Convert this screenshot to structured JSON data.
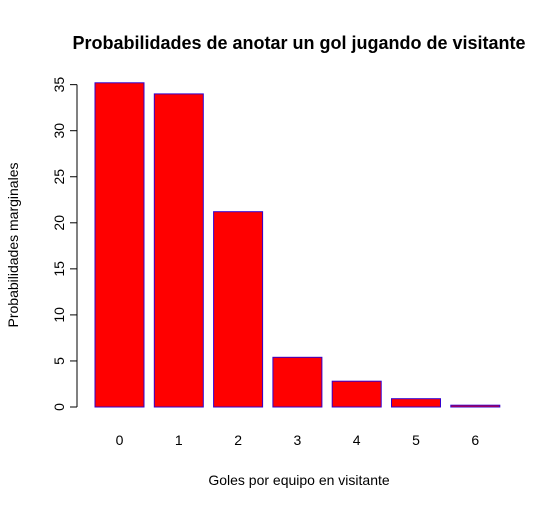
{
  "chart_data": {
    "type": "bar",
    "title": "Probabilidades de anotar un gol jugando de visitante",
    "xlabel": "Goles por equipo en visitante",
    "ylabel": "Probabilidades marginales",
    "categories": [
      "0",
      "1",
      "2",
      "3",
      "4",
      "5",
      "6"
    ],
    "values": [
      35.2,
      34.0,
      21.2,
      5.4,
      2.8,
      0.9,
      0.2
    ],
    "yticks": [
      0,
      5,
      10,
      15,
      20,
      25,
      30,
      35
    ],
    "ylim": [
      0,
      35.2
    ],
    "grid": false,
    "legend": "none",
    "colors": {
      "bar_fill": "#ff0000",
      "bar_border": "#3300cc",
      "axis": "#000000",
      "text": "#000000"
    }
  }
}
